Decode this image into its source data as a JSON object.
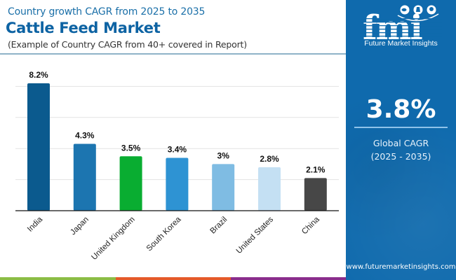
{
  "header": {
    "subtitle_top": "Country growth CAGR from 2025 to 2035",
    "title": "Cattle Feed Market",
    "subtitle_note": "(Example of Country CAGR from 40+ covered in Report)"
  },
  "panel": {
    "logo_letters": "fmi",
    "logo_name": "Future Market Insights",
    "cagr_value": "3.8%",
    "cagr_label_line1": "Global CAGR",
    "cagr_label_line2": "(2025 - 2035)",
    "website": "www.futuremarketinsights.com",
    "colors": {
      "background": "#0f6aad"
    }
  },
  "bottom_stripes": [
    "#8bbd45",
    "#e55a29",
    "#8a2d8c"
  ],
  "chart_data": {
    "type": "bar",
    "title": "Cattle Feed Market",
    "subtitle": "Country growth CAGR from 2025 to 2035",
    "xlabel": "",
    "ylabel": "",
    "categories": [
      "India",
      "Japan",
      "United Kingdom",
      "South Korea",
      "Brazil",
      "United States",
      "China"
    ],
    "values": [
      8.2,
      4.3,
      3.5,
      3.4,
      3.0,
      2.8,
      2.1
    ],
    "data_labels": [
      "8.2%",
      "4.3%",
      "3.5%",
      "3.4%",
      "3%",
      "2.8%",
      "2.1%"
    ],
    "colors": [
      "#0b5a8e",
      "#1c75b0",
      "#09ad31",
      "#2e93d3",
      "#7fbce3",
      "#c4e0f3",
      "#474747"
    ],
    "ylim": [
      0,
      8.2
    ],
    "gridlines": [
      2,
      4,
      6,
      8
    ],
    "grid": true,
    "y_tick_labels_visible": false,
    "x_tick_rotation": "-45deg",
    "legend": "none"
  }
}
